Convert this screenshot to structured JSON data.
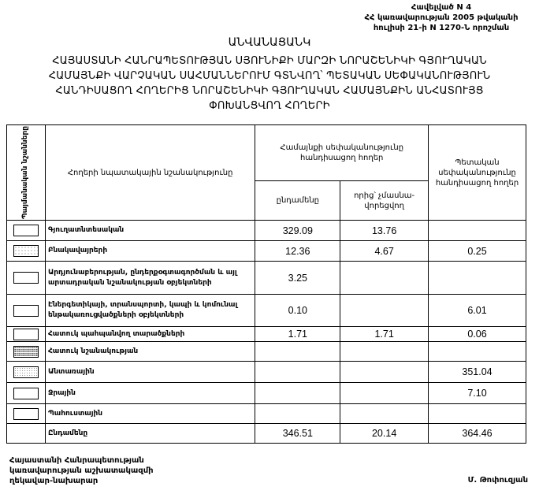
{
  "annex": {
    "line1": "Հավելված N 4",
    "line2": "ՀՀ կառավարության 2005 թվականի",
    "line3": "հուլիսի 21-ի N 1270-Ն որոշման"
  },
  "title": {
    "main": "ԱՆՎԱՆԱՑԱՆԿ",
    "line1": "ՀԱՅԱՍՏԱՆԻ ՀԱՆՐԱՊԵՏՈՒԹՅԱՆ ՍՅՈՒՆԻՔԻ ՄԱՐԶԻ ՆՈՐԱՇԵՆԻԿԻ ԳՅՈՒՂԱԿԱՆ",
    "line2": "ՀԱՄԱՅՆՔԻ ՎԱՐՉԱԿԱՆ ՍԱՀՄԱՆՆԵՐՈՒՄ ԳՏՆՎՈՂ՝ ՊԵՏԱԿԱՆ ՍԵՓԱԿԱՆՈՒԹՅՈՒՆ",
    "line3": "ՀԱՆԴԻՍԱՑՈՂ ՀՈՂԵՐԻՑ ՆՈՐԱՇԵՆԻԿԻ ԳՅՈՒՂԱԿԱՆ ՀԱՄԱՅՆՔԻՆ ԱՆՀԱՏՈՒՅՑ",
    "line4": "ՓՈԽԱՆՑՎՈՂ ՀՈՂԵՐԻ"
  },
  "table": {
    "headers": {
      "legend": "Պայմանական նշանները",
      "purpose": "Հողերի նպատակային նշանակությունը",
      "community": "Համայնքի սեփականությունը հանդիսացող հողեր",
      "total": "ընդամենը",
      "non_privatized": "որից՝ չմասնա-վորեցվող",
      "state": "Պետական սեփականությունը հանդիսացող հողեր"
    },
    "rows": [
      {
        "label": "Գյուղատնտեսական",
        "pattern": "plain",
        "total": "329.09",
        "non_privatized": "13.76",
        "state": ""
      },
      {
        "label": "Բնակավայրերի",
        "pattern": "dots",
        "total": "12.36",
        "non_privatized": "4.67",
        "state": "0.25"
      },
      {
        "label": "Արդյունաբերության, ընդերքօգտագործման և այլ արտադրական նշանակության օբյեկտների",
        "pattern": "plain",
        "total": "3.25",
        "non_privatized": "",
        "state": ""
      },
      {
        "label": "Էներգետիկայի, տրանսպորտի, կապի և կոմունալ ենթակառուցվածքների օբյեկտների",
        "pattern": "plain",
        "total": "0.10",
        "non_privatized": "",
        "state": "6.01"
      },
      {
        "label": "Հատուկ պահպանվող տարածքների",
        "pattern": "plain",
        "total": "1.71",
        "non_privatized": "1.71",
        "state": "0.06"
      },
      {
        "label": "Հատուկ նշանակության",
        "pattern": "dense",
        "total": "",
        "non_privatized": "",
        "state": ""
      },
      {
        "label": "Անտառային",
        "pattern": "light",
        "total": "",
        "non_privatized": "",
        "state": "351.04"
      },
      {
        "label": "Ջրային",
        "pattern": "plain",
        "total": "",
        "non_privatized": "",
        "state": "7.10"
      },
      {
        "label": "Պահուստային",
        "pattern": "plain",
        "total": "",
        "non_privatized": "",
        "state": ""
      }
    ],
    "totals": {
      "label": "Ընդամենը",
      "total": "346.51",
      "non_privatized": "20.14",
      "state": "364.46"
    }
  },
  "footer": {
    "line1": "Հայաստանի Հանրապետության",
    "line2": "կառավարության աշխատակազմի",
    "line3": "ղեկավար-նախարար",
    "signer": "Մ. Թոփուզյան"
  }
}
